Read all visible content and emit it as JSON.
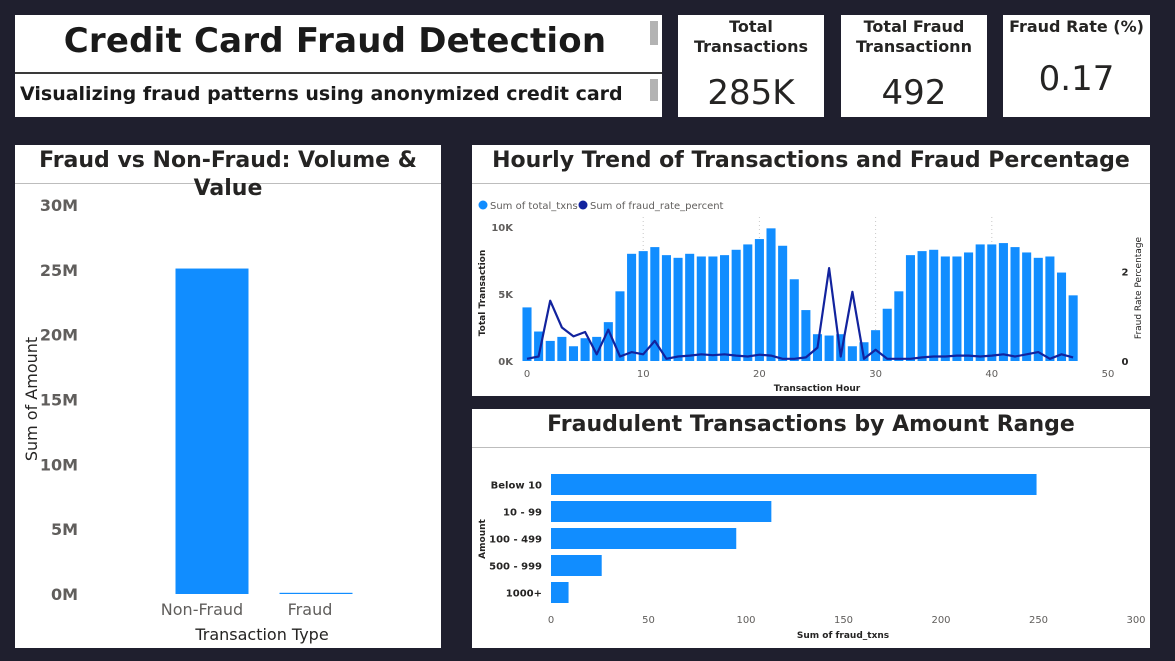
{
  "header": {
    "title": "Credit Card Fraud Detection",
    "subtitle": "Visualizing fraud patterns using anonymized credit card"
  },
  "kpis": [
    {
      "label_lines": [
        "Total",
        "Transactions"
      ],
      "value": "285K"
    },
    {
      "label_lines": [
        "Total Fraud",
        "Transactionn"
      ],
      "value": "492"
    },
    {
      "label_lines": [
        "Fraud Rate (%)"
      ],
      "value": "0.17"
    }
  ],
  "colors": {
    "bar": "#118dff",
    "line": "#12239e",
    "background": "#1f1f2e"
  },
  "chart_data": [
    {
      "type": "bar",
      "title": "Fraud vs Non-Fraud: Volume & Value",
      "categories": [
        "Non-Fraud",
        "Fraud"
      ],
      "values": [
        25100000,
        60000
      ],
      "xlabel": "Transaction Type",
      "ylabel": "Sum of Amount",
      "ylim": [
        0,
        30000000
      ],
      "yticks": [
        "0M",
        "5M",
        "10M",
        "15M",
        "20M",
        "25M",
        "30M"
      ],
      "grid": false
    },
    {
      "type": "bar",
      "subtype": "combo-bar-line",
      "title": "Hourly Trend of Transactions and Fraud Percentage",
      "legend": [
        "Sum of total_txns",
        "Sum of fraud_rate_percent"
      ],
      "legend_position": "top-left",
      "xlabel": "Transaction Hour",
      "ylabel": "Total Transaction",
      "ylabel_right": "Fraud Rate Percentage",
      "xlim": [
        0,
        50
      ],
      "xticks": [
        "0",
        "10",
        "20",
        "30",
        "40",
        "50"
      ],
      "ylim": [
        0,
        10000
      ],
      "yticks": [
        "0K",
        "5K",
        "10K"
      ],
      "ylim_right": [
        0,
        3
      ],
      "yticks_right": [
        "0",
        "2"
      ],
      "x": [
        0,
        1,
        2,
        3,
        4,
        5,
        6,
        7,
        8,
        9,
        10,
        11,
        12,
        13,
        14,
        15,
        16,
        17,
        18,
        19,
        20,
        21,
        22,
        23,
        24,
        25,
        26,
        27,
        28,
        29,
        30,
        31,
        32,
        33,
        34,
        35,
        36,
        37,
        38,
        39,
        40,
        41,
        42,
        43,
        44,
        45,
        46,
        47
      ],
      "series": [
        {
          "name": "Sum of total_txns",
          "kind": "bar",
          "values": [
            4000,
            2200,
            1500,
            1800,
            1100,
            1700,
            1800,
            2900,
            5200,
            8000,
            8200,
            8500,
            7900,
            7700,
            8000,
            7800,
            7800,
            7900,
            8300,
            8700,
            9100,
            9900,
            8600,
            6100,
            3800,
            2000,
            1900,
            2000,
            1100,
            1400,
            2300,
            3900,
            5200,
            7900,
            8200,
            8300,
            7800,
            7800,
            8100,
            8700,
            8700,
            8800,
            8500,
            8100,
            7700,
            7800,
            6600,
            4900
          ]
        },
        {
          "name": "Sum of fraud_rate_percent",
          "kind": "line",
          "values": [
            0.05,
            0.1,
            1.35,
            0.75,
            0.55,
            0.65,
            0.15,
            0.7,
            0.1,
            0.2,
            0.15,
            0.45,
            0.05,
            0.1,
            0.12,
            0.15,
            0.13,
            0.15,
            0.12,
            0.1,
            0.14,
            0.12,
            0.05,
            0.05,
            0.08,
            0.3,
            2.08,
            0.1,
            1.55,
            0.05,
            0.25,
            0.05,
            0.05,
            0.05,
            0.08,
            0.1,
            0.1,
            0.12,
            0.12,
            0.1,
            0.12,
            0.15,
            0.1,
            0.15,
            0.2,
            0.05,
            0.15,
            0.08
          ]
        }
      ]
    },
    {
      "type": "bar",
      "orientation": "horizontal",
      "title": "Fraudulent Transactions by Amount Range",
      "categories": [
        "Below 10",
        "10 - 99",
        "100 - 499",
        "500 - 999",
        "1000+"
      ],
      "values": [
        249,
        113,
        95,
        26,
        9
      ],
      "xlabel": "Sum of fraud_txns",
      "ylabel": "Amount",
      "xlim": [
        0,
        300
      ],
      "xticks": [
        "0",
        "50",
        "100",
        "150",
        "200",
        "250",
        "300"
      ]
    }
  ]
}
